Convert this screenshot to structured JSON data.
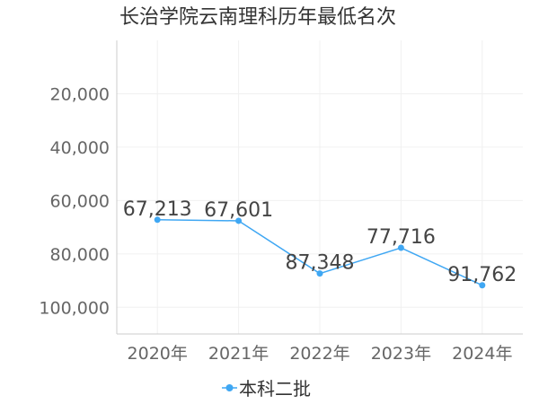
{
  "chart_data": {
    "type": "line",
    "title": "长治学院云南理科历年最低名次",
    "categories": [
      "2020年",
      "2021年",
      "2022年",
      "2023年",
      "2024年"
    ],
    "series": [
      {
        "name": "本科二批",
        "values": [
          67213,
          67601,
          87348,
          77716,
          91762
        ],
        "color": "#3fa7f3"
      }
    ],
    "data_labels": [
      "67,213",
      "67,601",
      "87,348",
      "77,716",
      "91,762"
    ],
    "y_ticks": [
      "20,000",
      "40,000",
      "60,000",
      "80,000",
      "100,000"
    ],
    "y_tick_values": [
      20000,
      40000,
      60000,
      80000,
      100000
    ],
    "ylim": [
      0,
      110000
    ],
    "y_inverted": true,
    "grid": true,
    "legend_position": "bottom"
  }
}
